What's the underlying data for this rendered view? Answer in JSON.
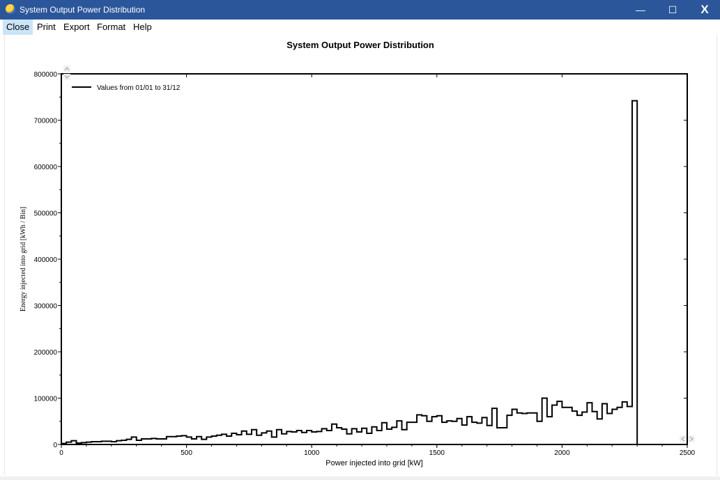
{
  "window": {
    "title": "System Output Power Distribution",
    "icon": "pvsyst-sun-icon",
    "minimize_glyph": "—",
    "maximize_glyph": "☐",
    "close_glyph": "X"
  },
  "menu": [
    {
      "label": "Close",
      "active": true
    },
    {
      "label": "Print",
      "active": false
    },
    {
      "label": "Export",
      "active": false
    },
    {
      "label": "Format",
      "active": false
    },
    {
      "label": "Help",
      "active": false
    }
  ],
  "chart_data": {
    "type": "line",
    "title": "System Output Power Distribution",
    "xlabel": "Power injected into grid [kW]",
    "ylabel": "Energy injected into grid [kWh / Bin]",
    "xlim": [
      0,
      2500
    ],
    "ylim": [
      0,
      800000
    ],
    "xticks": [
      0,
      500,
      1000,
      1500,
      2000,
      2500
    ],
    "yticks": [
      0,
      100000,
      200000,
      300000,
      400000,
      500000,
      600000,
      700000,
      800000
    ],
    "legend_position": "top-left",
    "series": [
      {
        "name": "Values from 01/01 to 31/12",
        "color": "#000000",
        "bin_width": 20,
        "x_start": 0,
        "values": [
          2000,
          5000,
          8000,
          3000,
          4000,
          5000,
          6000,
          6000,
          7000,
          7000,
          6000,
          8000,
          9000,
          11000,
          16000,
          9000,
          12000,
          12000,
          13000,
          12000,
          12000,
          17000,
          17000,
          18000,
          19000,
          16000,
          12000,
          17000,
          11000,
          16000,
          18000,
          20000,
          22000,
          18000,
          24000,
          21000,
          29000,
          22000,
          32000,
          20000,
          25000,
          29000,
          16000,
          32000,
          23000,
          28000,
          27000,
          30000,
          26000,
          30000,
          27000,
          28000,
          34000,
          30000,
          44000,
          36000,
          33000,
          23000,
          34000,
          27000,
          35000,
          24000,
          38000,
          30000,
          47000,
          33000,
          37000,
          51000,
          32000,
          48000,
          48000,
          64000,
          62000,
          50000,
          60000,
          62000,
          48000,
          51000,
          50000,
          56000,
          42000,
          60000,
          48000,
          46000,
          58000,
          41000,
          78000,
          36000,
          36000,
          63000,
          76000,
          68000,
          67000,
          68000,
          68000,
          50000,
          100000,
          60000,
          85000,
          93000,
          80000,
          80000,
          72000,
          63000,
          70000,
          90000,
          71000,
          55000,
          88000,
          67000,
          76000,
          80000,
          92000,
          82000,
          742000,
          0
        ]
      }
    ]
  }
}
